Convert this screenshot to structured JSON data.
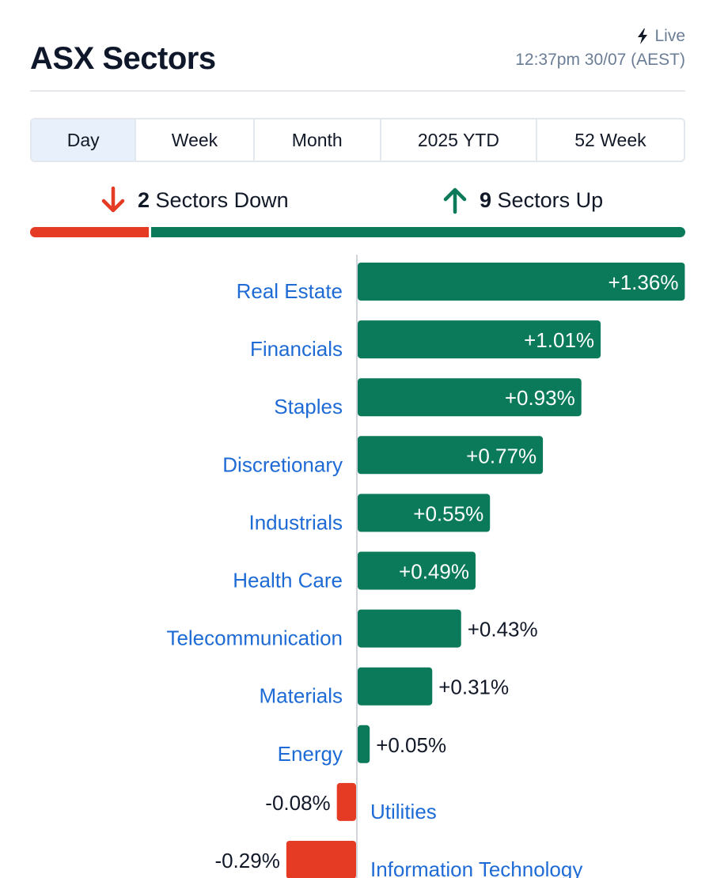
{
  "header": {
    "title": "ASX Sectors",
    "live_label": "Live",
    "timestamp": "12:37pm 30/07 (AEST)"
  },
  "tabs": [
    {
      "label": "Day",
      "active": true
    },
    {
      "label": "Week",
      "active": false
    },
    {
      "label": "Month",
      "active": false
    },
    {
      "label": "2025 YTD",
      "active": false
    },
    {
      "label": "52 Week",
      "active": false
    }
  ],
  "summary": {
    "down_count": "2",
    "down_label": "Sectors Down",
    "up_count": "9",
    "up_label": "Sectors Up"
  },
  "colors": {
    "up": "#0a7a5a",
    "down": "#e53b24",
    "link": "#1e6bd6",
    "text": "#111827"
  },
  "chart_data": {
    "type": "bar",
    "orientation": "horizontal",
    "categories": [
      "Real Estate",
      "Financials",
      "Staples",
      "Discretionary",
      "Industrials",
      "Health Care",
      "Telecommunication",
      "Materials",
      "Energy",
      "Utilities",
      "Information Technology"
    ],
    "values": [
      1.36,
      1.01,
      0.93,
      0.77,
      0.55,
      0.49,
      0.43,
      0.31,
      0.05,
      -0.08,
      -0.29
    ],
    "labels": [
      "+1.36%",
      "+1.01%",
      "+0.93%",
      "+0.77%",
      "+0.55%",
      "+0.49%",
      "+0.43%",
      "+0.31%",
      "+0.05%",
      "-0.08%",
      "-0.29%"
    ],
    "unit": "%",
    "xlim": [
      -0.29,
      1.36
    ]
  }
}
